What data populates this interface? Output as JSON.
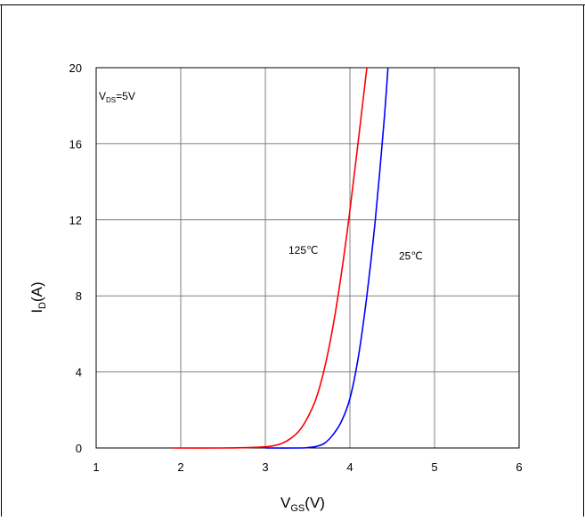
{
  "chart_data": {
    "type": "line",
    "xlabel": {
      "main": "V",
      "sub": "GS",
      "unit": "(V)"
    },
    "ylabel": {
      "main": "I",
      "sub": "D",
      "unit": "(A)"
    },
    "xlim": [
      1,
      6
    ],
    "ylim": [
      0,
      20
    ],
    "xticks": [
      1,
      2,
      3,
      4,
      5,
      6
    ],
    "yticks": [
      0,
      4,
      8,
      12,
      16,
      20
    ],
    "grid": true,
    "condition": {
      "main": "V",
      "sub": "DS",
      "rest": "=5V"
    },
    "series": [
      {
        "name": "125℃",
        "color": "#ff0000",
        "x": [
          1.9,
          2.5,
          2.8,
          3.0,
          3.1,
          3.2,
          3.3,
          3.4,
          3.5,
          3.6,
          3.7,
          3.8,
          3.9,
          4.0,
          4.1,
          4.2
        ],
        "y": [
          0.0,
          0.0,
          0.02,
          0.06,
          0.12,
          0.25,
          0.5,
          0.9,
          1.6,
          2.6,
          4.2,
          6.4,
          9.2,
          12.5,
          16.2,
          20.0
        ]
      },
      {
        "name": "25℃",
        "color": "#0000ff",
        "x": [
          3.0,
          3.4,
          3.5,
          3.6,
          3.7,
          3.8,
          3.9,
          4.0,
          4.1,
          4.2,
          4.3,
          4.4,
          4.45
        ],
        "y": [
          0.0,
          0.0,
          0.02,
          0.08,
          0.25,
          0.7,
          1.4,
          2.6,
          4.8,
          8.0,
          12.0,
          17.0,
          20.0
        ]
      }
    ],
    "annotations": [
      {
        "text": "125℃",
        "x": 3.45,
        "y": 10.2
      },
      {
        "text": "25℃",
        "x": 4.72,
        "y": 9.9
      }
    ]
  }
}
